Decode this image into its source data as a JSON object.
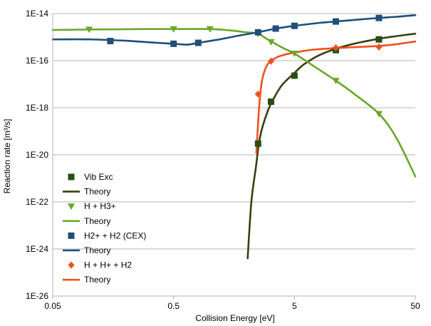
{
  "chart_data": {
    "type": "scatter",
    "title": "",
    "xlabel": "Collision Energy [eV]",
    "ylabel": "Reaction rate [m³/s]",
    "xscale": "log",
    "yscale": "log",
    "xlim": [
      0.05,
      50
    ],
    "ylim": [
      1e-26,
      1e-14
    ],
    "grid": "horizontal",
    "legend_position": "left-bottom",
    "xticks": [
      {
        "value": 0.05,
        "label": "0.05"
      },
      {
        "value": 0.5,
        "label": "0.5"
      },
      {
        "value": 5,
        "label": "5"
      },
      {
        "value": 50,
        "label": "50"
      }
    ],
    "yticks": [
      {
        "value": 1e-14,
        "label": "1E-14"
      },
      {
        "value": 1e-16,
        "label": "1E-16"
      },
      {
        "value": 1e-18,
        "label": "1E-18"
      },
      {
        "value": 1e-20,
        "label": "1E-20"
      },
      {
        "value": 1e-22,
        "label": "1E-22"
      },
      {
        "value": 1e-24,
        "label": "1E-24"
      },
      {
        "value": 1e-26,
        "label": "1E-26"
      }
    ],
    "series": [
      {
        "name": "Vib Exc",
        "kind": "markers",
        "marker": "square",
        "color": "#274e13",
        "points": [
          [
            2.5,
            3e-20
          ],
          [
            3.2,
            1.8e-18
          ],
          [
            5.0,
            2.3e-17
          ],
          [
            11.0,
            2.8e-16
          ],
          [
            25.0,
            8e-16
          ]
        ]
      },
      {
        "name": "Theory",
        "kind": "line",
        "color": "#3a3f12",
        "points": [
          [
            2.05,
            4e-25
          ],
          [
            2.2,
            1e-22
          ],
          [
            2.4,
            3e-21
          ],
          [
            2.6,
            6e-20
          ],
          [
            3.0,
            7e-19
          ],
          [
            3.5,
            3.5e-18
          ],
          [
            4.0,
            1e-17
          ],
          [
            5.0,
            3e-17
          ],
          [
            6.0,
            7e-17
          ],
          [
            8.0,
            1.7e-16
          ],
          [
            11.0,
            3.2e-16
          ],
          [
            15.0,
            5e-16
          ],
          [
            25.0,
            8.5e-16
          ],
          [
            35.0,
            1.1e-15
          ],
          [
            50.0,
            1.4e-15
          ]
        ]
      },
      {
        "name": "H + H3+",
        "kind": "markers",
        "marker": "triangle-down",
        "color": "#6aa62a",
        "points": [
          [
            0.1,
            2.1e-15
          ],
          [
            0.5,
            2.2e-15
          ],
          [
            1.0,
            2.2e-15
          ],
          [
            2.5,
            1.4e-15
          ],
          [
            3.2,
            6.2e-16
          ],
          [
            5.0,
            2e-16
          ],
          [
            11.0,
            1.4e-17
          ],
          [
            25.0,
            5.5e-19
          ]
        ]
      },
      {
        "name": "Theory",
        "kind": "line",
        "color": "#6aa62a",
        "points": [
          [
            0.05,
            2e-15
          ],
          [
            0.1,
            2.1e-15
          ],
          [
            0.3,
            2.2e-15
          ],
          [
            0.5,
            2.2e-15
          ],
          [
            1.0,
            2.2e-15
          ],
          [
            1.5,
            1.9e-15
          ],
          [
            2.0,
            1.6e-15
          ],
          [
            2.5,
            1.4e-15
          ],
          [
            3.0,
            8e-16
          ],
          [
            4.0,
            3.5e-16
          ],
          [
            5.0,
            2e-16
          ],
          [
            7.0,
            6.5e-17
          ],
          [
            11.0,
            1.4e-17
          ],
          [
            15.0,
            4.5e-18
          ],
          [
            25.0,
            5.5e-19
          ],
          [
            35.0,
            5e-20
          ],
          [
            50.0,
            1.2e-21
          ]
        ]
      },
      {
        "name": "H2+ + H2 (CEX)",
        "kind": "markers",
        "marker": "square",
        "color": "#1f4e79",
        "points": [
          [
            0.15,
            6.8e-16
          ],
          [
            0.5,
            5.2e-16
          ],
          [
            0.8,
            5.7e-16
          ],
          [
            2.5,
            1.6e-15
          ],
          [
            3.5,
            2.3e-15
          ],
          [
            5.0,
            3e-15
          ],
          [
            11.0,
            4.6e-15
          ],
          [
            25.0,
            6.5e-15
          ]
        ]
      },
      {
        "name": "Theory",
        "kind": "line",
        "color": "#1f4e79",
        "points": [
          [
            0.05,
            8e-16
          ],
          [
            0.1,
            8e-16
          ],
          [
            0.2,
            7e-16
          ],
          [
            0.35,
            5.8e-16
          ],
          [
            0.5,
            5.2e-16
          ],
          [
            0.65,
            4.8e-16
          ],
          [
            0.8,
            5.7e-16
          ],
          [
            1.2,
            8e-16
          ],
          [
            1.8,
            1.2e-15
          ],
          [
            2.5,
            1.6e-15
          ],
          [
            3.5,
            2.3e-15
          ],
          [
            5.0,
            3e-15
          ],
          [
            8.0,
            4e-15
          ],
          [
            11.0,
            4.6e-15
          ],
          [
            18.0,
            5.7e-15
          ],
          [
            25.0,
            6.5e-15
          ],
          [
            35.0,
            7.3e-15
          ],
          [
            50.0,
            8.6e-15
          ]
        ]
      },
      {
        "name": "H + H+ + H2",
        "kind": "markers",
        "marker": "diamond",
        "color": "#f0501e",
        "points": [
          [
            2.5,
            3.8e-18
          ],
          [
            3.2,
            9.5e-17
          ],
          [
            11.0,
            3.5e-16
          ],
          [
            25.0,
            3.8e-16
          ]
        ]
      },
      {
        "name": "Theory",
        "kind": "line",
        "color": "#f0501e",
        "points": [
          [
            2.42,
            1.2e-20
          ],
          [
            2.55,
            1e-18
          ],
          [
            2.7,
            1.5e-17
          ],
          [
            3.0,
            7e-17
          ],
          [
            3.5,
            1.3e-16
          ],
          [
            4.0,
            1.7e-16
          ],
          [
            5.0,
            2.2e-16
          ],
          [
            7.0,
            2.9e-16
          ],
          [
            11.0,
            3.4e-16
          ],
          [
            15.0,
            3.7e-16
          ],
          [
            25.0,
            4.2e-16
          ],
          [
            35.0,
            5e-16
          ],
          [
            50.0,
            6.5e-16
          ]
        ]
      }
    ]
  }
}
